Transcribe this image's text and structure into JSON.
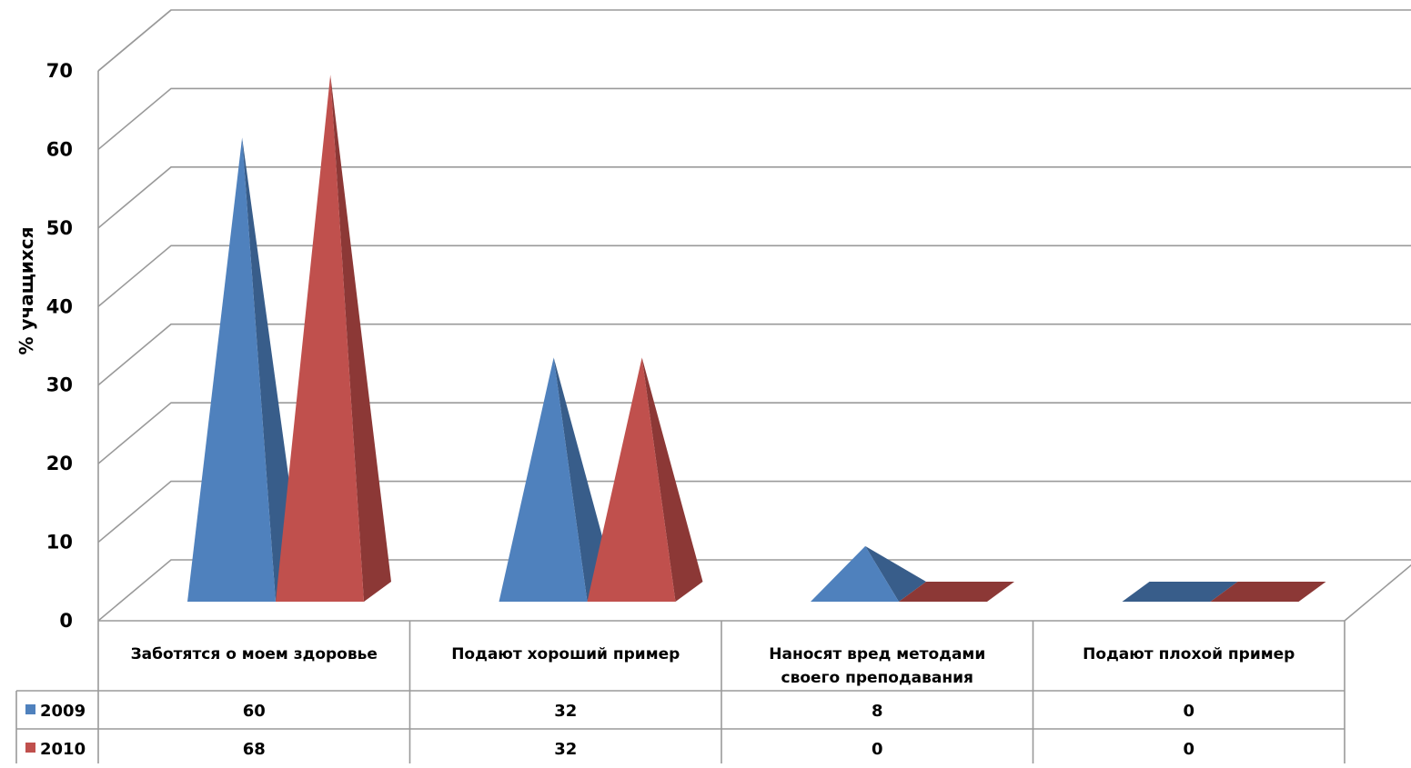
{
  "chart_data": {
    "type": "bar",
    "bar_shape": "pyramid",
    "three_d": true,
    "categories": [
      "Заботятся о моем здоровье",
      "Подают хороший пример",
      "Наносят вред методами своего преподавания",
      "Подают плохой пример"
    ],
    "series": [
      {
        "name": "2009",
        "values": [
          60,
          32,
          8,
          0
        ],
        "color": "#4F81BD",
        "shade": "#385D8A"
      },
      {
        "name": "2010",
        "values": [
          68,
          32,
          0,
          0
        ],
        "color": "#C0504D",
        "shade": "#8C3836"
      }
    ],
    "ylabel": "% учащихся",
    "ylim": [
      0,
      70
    ],
    "yticks": [
      0,
      10,
      20,
      30,
      40,
      50,
      60,
      70
    ],
    "grid": true,
    "legend": "data-table",
    "data_table": {
      "rows": [
        {
          "label": "2009",
          "cells": [
            "60",
            "32",
            "8",
            "0"
          ]
        },
        {
          "label": "2010",
          "cells": [
            "68",
            "32",
            "0",
            "0"
          ]
        }
      ]
    }
  }
}
